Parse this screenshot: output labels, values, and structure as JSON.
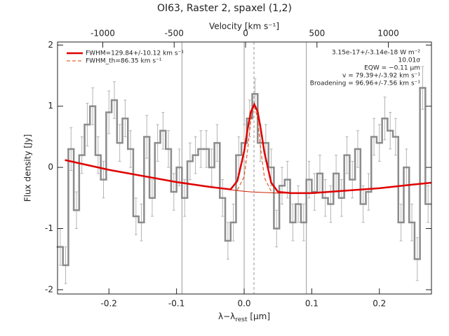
{
  "chart_data": {
    "type": "spectrum",
    "title": "OI63, Raster 2, spaxel (1,2)",
    "x_label": {
      "main": "λ−λ",
      "sub": "rest",
      "unit": " [μm]"
    },
    "y_label": "Flux density [Jy]",
    "x2_label": "Velocity [km s⁻¹]",
    "xlim": [
      -0.276,
      0.277
    ],
    "ylim": [
      -2.07,
      2.05
    ],
    "x2lim": [
      -1317,
      1302
    ],
    "xticks": [
      -0.2,
      -0.1,
      {
        "value": 0,
        "label": "0.0"
      },
      0.1,
      0.2
    ],
    "yticks": [
      -2,
      -1,
      0,
      1,
      2
    ],
    "x2ticks": [
      -1000,
      -500,
      0,
      500,
      1000
    ],
    "vlines": [
      -0.092,
      0,
      0.092
    ],
    "line_center": 0.0145,
    "spectrum": {
      "color": "#8c8c8c",
      "error_color": "#b4b4b4",
      "x": [
        -0.272,
        -0.264,
        -0.256,
        -0.248,
        -0.24,
        -0.232,
        -0.224,
        -0.216,
        -0.208,
        -0.2,
        -0.192,
        -0.184,
        -0.176,
        -0.168,
        -0.16,
        -0.152,
        -0.144,
        -0.136,
        -0.128,
        -0.12,
        -0.112,
        -0.104,
        -0.096,
        -0.088,
        -0.08,
        -0.072,
        -0.064,
        -0.056,
        -0.048,
        -0.04,
        -0.032,
        -0.024,
        -0.016,
        -0.008,
        0,
        0.008,
        0.016,
        0.024,
        0.032,
        0.04,
        0.048,
        0.056,
        0.064,
        0.072,
        0.08,
        0.088,
        0.096,
        0.104,
        0.112,
        0.12,
        0.128,
        0.136,
        0.144,
        0.152,
        0.16,
        0.168,
        0.176,
        0.184,
        0.192,
        0.2,
        0.208,
        0.216,
        0.224,
        0.232,
        0.24,
        0.248,
        0.256,
        0.264,
        0.272
      ],
      "values": [
        -1.3,
        -1.6,
        0.3,
        -0.7,
        0.2,
        0.7,
        1.0,
        0.2,
        -0.2,
        0.9,
        1.1,
        0.4,
        0.8,
        0.3,
        -0.8,
        -0.9,
        0.5,
        -0.5,
        0.4,
        0.6,
        0.3,
        -0.4,
        0.0,
        -0.5,
        0.1,
        0.2,
        0.3,
        0.3,
        0.0,
        0.4,
        -0.5,
        -1.2,
        -0.9,
        0.2,
        0.4,
        0.8,
        1.2,
        0.4,
        0.4,
        0.0,
        -1.0,
        -0.3,
        -0.2,
        -0.9,
        -0.6,
        -0.9,
        -0.2,
        -0.4,
        -0.1,
        -0.5,
        -0.6,
        -0.1,
        -0.5,
        0.2,
        -0.2,
        0.3,
        -0.6,
        -0.4,
        0.5,
        0.4,
        0.8,
        0.6,
        0.5,
        -0.9,
        0.0,
        -0.9,
        -1.5,
        1.3,
        -0.6
      ],
      "errors": [
        0.3,
        0.3,
        0.35,
        0.3,
        0.3,
        0.35,
        0.3,
        0.3,
        0.3,
        0.35,
        0.3,
        0.3,
        0.3,
        0.3,
        0.3,
        0.3,
        0.35,
        0.3,
        0.3,
        0.3,
        0.3,
        0.3,
        0.3,
        0.3,
        0.3,
        0.3,
        0.3,
        0.3,
        0.3,
        0.3,
        0.3,
        0.3,
        0.3,
        0.3,
        0.3,
        0.3,
        0.25,
        0.3,
        0.3,
        0.3,
        0.3,
        0.3,
        0.3,
        0.3,
        0.3,
        0.3,
        0.3,
        0.3,
        0.3,
        0.3,
        0.3,
        0.3,
        0.3,
        0.3,
        0.3,
        0.3,
        0.3,
        0.3,
        0.3,
        0.3,
        0.35,
        0.3,
        0.3,
        0.3,
        0.3,
        0.3,
        0.35,
        0.35,
        0.3
      ]
    },
    "fit": {
      "name": "FWHM=129.84+/-10.12 km s⁻¹",
      "color": "#e00000",
      "x": [
        -0.265,
        -0.2,
        -0.15,
        -0.1,
        -0.05,
        -0.02,
        -0.01,
        0,
        0.005,
        0.01,
        0.015,
        0.02,
        0.025,
        0.03,
        0.04,
        0.05,
        0.07,
        0.1,
        0.15,
        0.2,
        0.25,
        0.277
      ],
      "values": [
        0.12,
        -0.04,
        -0.14,
        -0.24,
        -0.32,
        -0.36,
        -0.22,
        0.26,
        0.62,
        0.91,
        1.03,
        0.91,
        0.6,
        0.24,
        -0.25,
        -0.4,
        -0.42,
        -0.42,
        -0.38,
        -0.34,
        -0.28,
        -0.25
      ]
    },
    "thermal": {
      "name": "FWHM_th=86.35 km s⁻¹",
      "color": "#e04000",
      "x": [
        -0.01,
        0,
        0.005,
        0.01,
        0.015,
        0.02,
        0.025,
        0.03,
        0.04
      ],
      "values": [
        -0.37,
        -0.15,
        0.27,
        0.78,
        1.03,
        0.78,
        0.25,
        -0.17,
        -0.39
      ]
    },
    "baseline": {
      "color": "#d02000",
      "x": [
        -0.03,
        -0.01,
        0.01,
        0.03,
        0.05,
        0.07
      ],
      "values": [
        -0.35,
        -0.38,
        -0.4,
        -0.41,
        -0.42,
        -0.42
      ]
    },
    "annotations": [
      "3.15e-17+/-3.14e-18 W m⁻²",
      "10.01σ",
      "EQW = −0.11 μm",
      "v = 79.39+/-3.92 km s⁻¹",
      "Broadening = 96.96+/-7.56 km s⁻¹"
    ]
  }
}
